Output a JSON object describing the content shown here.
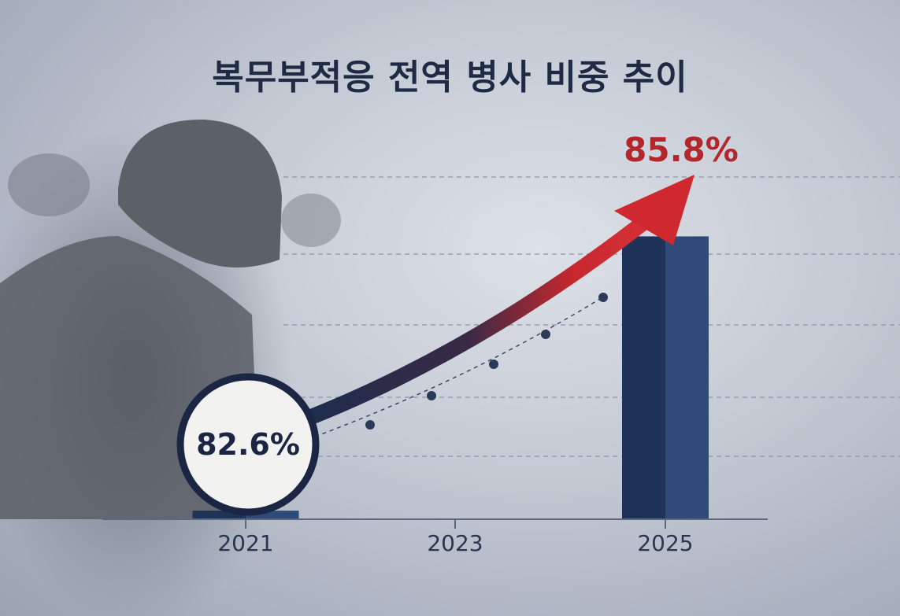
{
  "chart_data": {
    "type": "bar",
    "title": "복무부적응 전역 병사 비중 추이",
    "categories": [
      "2021",
      "2023",
      "2025"
    ],
    "series": [
      {
        "values": [
          82.6,
          null,
          85.8
        ]
      }
    ],
    "data_labels": [
      "82.6%",
      "",
      "85.8%"
    ],
    "trend_arrow": true,
    "grid": true,
    "colors": {
      "bar": "#1f3358",
      "bar_light": "#2d4a78",
      "arrow": "#c8272d",
      "label_highlight": "#b3262b",
      "title": "#1f2a44"
    }
  }
}
